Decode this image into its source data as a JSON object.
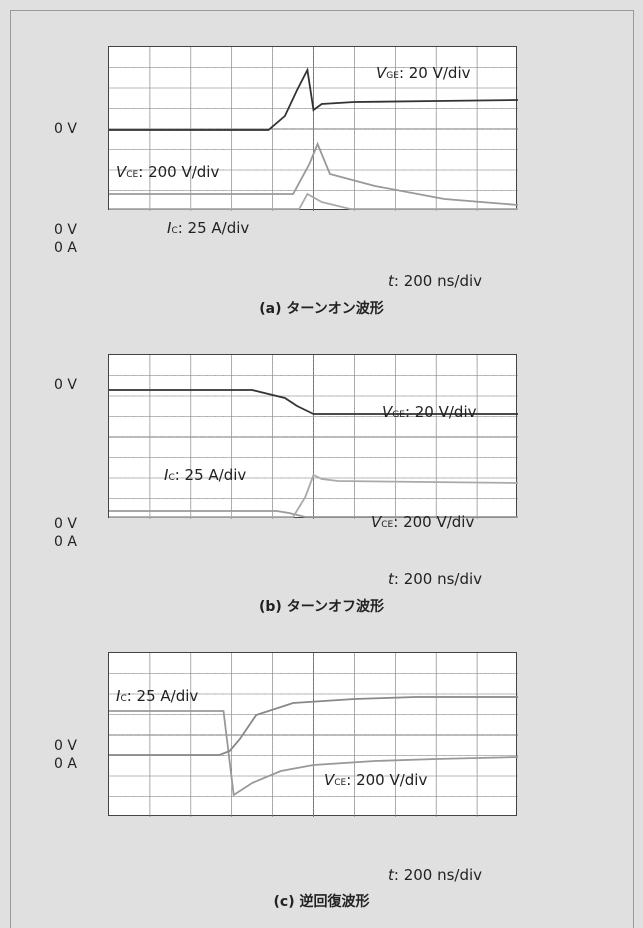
{
  "figures": [
    {
      "caption": "(a) ターンオン波形",
      "time_label_var": "t",
      "time_label_value": ": 200 ns/div",
      "side_labels": [
        "0 V",
        "0 V",
        "0 A"
      ],
      "traces": [
        {
          "var": "V",
          "sub": "GE",
          "scale": ": 20 V/div"
        },
        {
          "var": "V",
          "sub": "CE",
          "scale": ": 200 V/div"
        },
        {
          "var": "I",
          "sub": "C",
          "scale": ": 25 A/div"
        }
      ]
    },
    {
      "caption": "(b) ターンオフ波形",
      "time_label_var": "t",
      "time_label_value": ": 200 ns/div",
      "side_labels": [
        "0 V",
        "0 V",
        "0 A"
      ],
      "traces": [
        {
          "var": "V",
          "sub": "GE",
          "scale": ": 20 V/div"
        },
        {
          "var": "I",
          "sub": "C",
          "scale": ": 25 A/div"
        },
        {
          "var": "V",
          "sub": "CE",
          "scale": ": 200 V/div"
        }
      ]
    },
    {
      "caption": "(c) 逆回復波形",
      "time_label_var": "t",
      "time_label_value": ": 200 ns/div",
      "side_labels": [
        "0 V",
        "0 A"
      ],
      "traces": [
        {
          "var": "I",
          "sub": "C",
          "scale": ": 25 A/div"
        },
        {
          "var": "V",
          "sub": "CE",
          "scale": ": 200 V/div"
        }
      ]
    }
  ],
  "chart_data": [
    {
      "type": "line",
      "title": "(a) ターンオン波形",
      "x_unit": "div (200 ns/div)",
      "xlim": [
        0,
        10
      ],
      "series": [
        {
          "name": "V_GE",
          "x": [
            0,
            3.9,
            4.3,
            4.6,
            4.85,
            5.0,
            5.2,
            6,
            8,
            10
          ],
          "y": [
            0,
            0,
            0.7,
            2.0,
            3.0,
            1.0,
            1.3,
            1.4,
            1.45,
            1.5
          ]
        },
        {
          "name": "V_CE",
          "x": [
            0,
            4.5,
            4.9,
            5.1,
            5.4,
            6.5,
            8.2,
            10
          ],
          "y": [
            0.5,
            0.5,
            2.0,
            3.0,
            1.5,
            0.9,
            0.25,
            -0.05
          ]
        },
        {
          "name": "I_C",
          "x": [
            0,
            4.4,
            4.65,
            4.85,
            5.2,
            5.9,
            6.3,
            10
          ],
          "y": [
            0,
            0,
            1.0,
            2.4,
            2.0,
            0.4,
            0.05,
            0
          ]
        }
      ]
    },
    {
      "type": "line",
      "title": "(b) ターンオフ波形",
      "x_unit": "div (200 ns/div)",
      "xlim": [
        0,
        10
      ],
      "series": [
        {
          "name": "V_GE",
          "x": [
            0,
            3.5,
            3.9,
            4.3,
            4.6,
            4.9,
            5.0,
            10
          ],
          "y": [
            0,
            0,
            -0.2,
            -0.4,
            -0.8,
            -1.1,
            -1.2,
            -1.2
          ]
        },
        {
          "name": "I_C",
          "x": [
            0,
            4.1,
            4.4,
            4.8,
            5.0,
            5.3,
            5.6,
            6.5,
            10
          ],
          "y": [
            1.5,
            1.5,
            1.4,
            1.2,
            0.8,
            0.3,
            0.05,
            0,
            0
          ]
        },
        {
          "name": "V_CE",
          "x": [
            0,
            4.2,
            4.5,
            4.8,
            5.0,
            5.2,
            5.6,
            10
          ],
          "y": [
            0,
            0,
            0.2,
            2.2,
            3.3,
            3.1,
            3.0,
            2.9
          ]
        }
      ]
    },
    {
      "type": "line",
      "title": "(c) 逆回復波形",
      "x_unit": "div (200 ns/div)",
      "xlim": [
        0,
        10
      ],
      "series": [
        {
          "name": "I_C",
          "x": [
            0,
            2.2,
            2.8,
            3.05,
            3.5,
            4.2,
            5.0,
            6.5,
            8.0,
            10
          ],
          "y": [
            2.2,
            2.2,
            2.2,
            -2.0,
            -1.4,
            -0.8,
            -0.5,
            -0.3,
            -0.2,
            -0.1
          ]
        },
        {
          "name": "V_CE",
          "x": [
            0,
            2.7,
            2.95,
            3.2,
            3.6,
            4.5,
            6,
            7.5,
            10
          ],
          "y": [
            0,
            0,
            0.2,
            0.8,
            2.0,
            2.6,
            2.8,
            2.9,
            2.9
          ]
        }
      ]
    }
  ]
}
